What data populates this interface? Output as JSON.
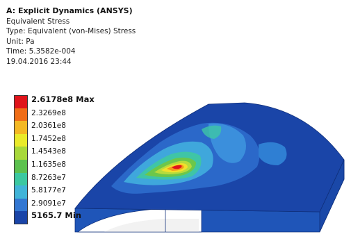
{
  "header": {
    "title": "A: Explicit Dynamics (ANSYS)",
    "result": "Equivalent Stress",
    "type": "Type: Equivalent (von-Mises) Stress",
    "unit": "Unit: Pa",
    "time": "Time: 5.3582e-004",
    "date": "19.04.2016 23:44"
  },
  "legend": {
    "entries": [
      {
        "label": "2.6178e8 Max",
        "color": "#e0141b"
      },
      {
        "label": "2.3269e8",
        "color": "#f06d17"
      },
      {
        "label": "2.0361e8",
        "color": "#f4b823"
      },
      {
        "label": "1.7452e8",
        "color": "#eaea2a"
      },
      {
        "label": "1.4543e8",
        "color": "#a8d83a"
      },
      {
        "label": "1.1635e8",
        "color": "#5cc14e"
      },
      {
        "label": "8.7263e7",
        "color": "#3bc8a0"
      },
      {
        "label": "5.8177e7",
        "color": "#40b4d8"
      },
      {
        "label": "2.9091e7",
        "color": "#3277d2"
      },
      {
        "label": "5165.7 Min",
        "color": "#1a45a8"
      }
    ]
  },
  "colors": {
    "model_base": "#1a45a8",
    "model_side": "#1f55b8",
    "model_edge": "#0f2f7a"
  }
}
